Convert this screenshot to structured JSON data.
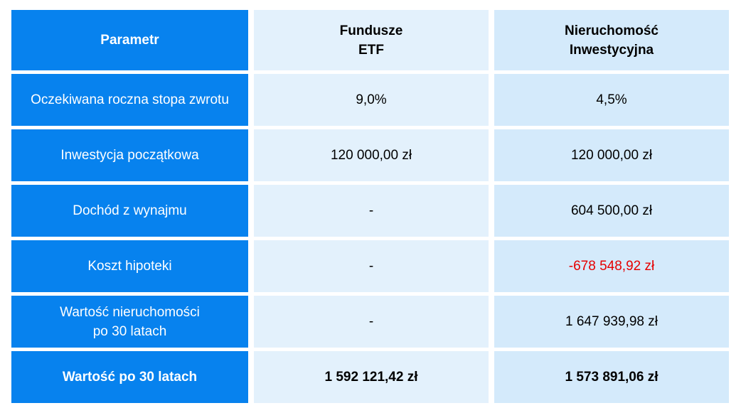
{
  "header": {
    "parameter": "Parametr",
    "etf": "Fundusze\nETF",
    "real_estate": "Nieruchomość\nInwestycyjna"
  },
  "rows": [
    {
      "label": "Oczekiwana roczna stopa zwrotu",
      "etf": "9,0%",
      "real_estate": "4,5%"
    },
    {
      "label": "Inwestycja początkowa",
      "etf": "120 000,00 zł",
      "real_estate": "120 000,00 zł"
    },
    {
      "label": "Dochód z wynajmu",
      "etf": "-",
      "real_estate": "604 500,00 zł"
    },
    {
      "label": "Koszt hipoteki",
      "etf": "-",
      "real_estate": "-678 548,92 zł"
    },
    {
      "label": "Wartość nieruchomości\npo 30 latach",
      "etf": "-",
      "real_estate": "1 647 939,98 zł"
    }
  ],
  "total": {
    "label": "Wartość po 30 latach",
    "etf": "1 592 121,42 zł",
    "real_estate": "1 573 891,06 zł"
  },
  "colors": {
    "param_column": "#0782ee",
    "etf_column": "#e3f1fc",
    "real_estate_column": "#d4eafb",
    "negative_value": "#e60000"
  }
}
